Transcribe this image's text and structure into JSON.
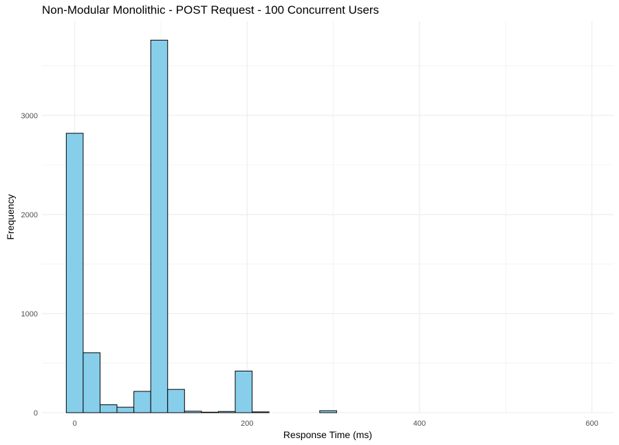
{
  "chart_data": {
    "type": "bar",
    "title": "Non-Modular Monolithic - POST Request - 100 Concurrent Users",
    "xlabel": "Response Time (ms)",
    "ylabel": "Frequency",
    "xlim": [
      -38,
      625
    ],
    "ylim": [
      0,
      3950
    ],
    "x_ticks": [
      0,
      200,
      400,
      600
    ],
    "x_minor_ticks": [
      -100,
      100,
      300,
      500
    ],
    "y_ticks": [
      0,
      1000,
      2000,
      3000
    ],
    "y_minor_ticks": [
      500,
      1500,
      2500,
      3500
    ],
    "bin_width": 19.6,
    "bin_start": -9.8,
    "values": [
      2820,
      605,
      80,
      55,
      215,
      3760,
      235,
      15,
      5,
      12,
      420,
      8,
      0,
      0,
      0,
      20,
      0,
      0,
      0,
      0,
      0,
      0,
      0,
      0,
      0,
      0,
      0,
      0,
      0,
      0
    ],
    "grid": true,
    "colors": {
      "fill": "#87CEEB",
      "stroke": "#000000",
      "grid": "#ebebeb"
    }
  }
}
